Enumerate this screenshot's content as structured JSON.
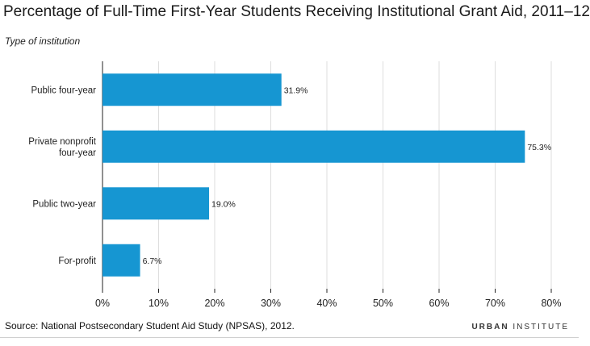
{
  "chart_data": {
    "type": "bar",
    "orientation": "horizontal",
    "title": "Percentage of Full-Time First-Year Students Receiving Institutional Grant Aid, 2011–12",
    "subtitle": "Type of institution",
    "categories": [
      [
        "Public four-year"
      ],
      [
        "Private nonprofit",
        "four-year"
      ],
      [
        "Public two-year"
      ],
      [
        "For-profit"
      ]
    ],
    "values": [
      31.9,
      75.3,
      19.0,
      6.7
    ],
    "value_labels": [
      "31.9%",
      "75.3%",
      "19.0%",
      "6.7%"
    ],
    "xlim": [
      0,
      80
    ],
    "x_ticks": [
      0,
      10,
      20,
      30,
      40,
      50,
      60,
      70,
      80
    ],
    "x_tick_labels": [
      "0%",
      "10%",
      "20%",
      "30%",
      "40%",
      "50%",
      "60%",
      "70%",
      "80%"
    ],
    "grid": true,
    "bar_color": "#1696d2",
    "grid_color": "#dedede"
  },
  "footer": {
    "source": "Source: National Postsecondary Student Aid Study (NPSAS), 2012.",
    "brand_bold": "URBAN",
    "brand_rest": " INSTITUTE"
  }
}
